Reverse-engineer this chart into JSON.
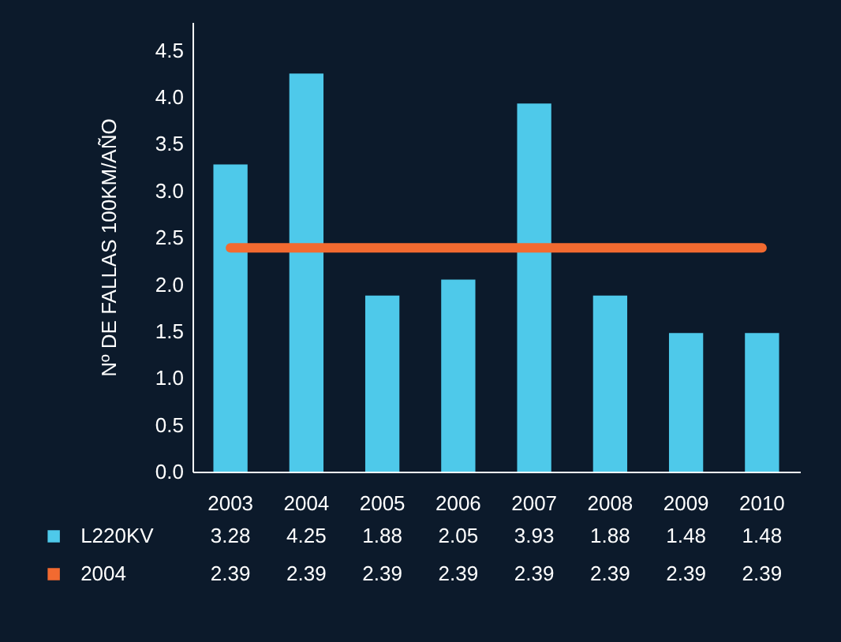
{
  "chart_data": {
    "type": "bar",
    "ylabel": "Nº DE FALLAS 100KM/AÑO",
    "categories": [
      "2003",
      "2004",
      "2005",
      "2006",
      "2007",
      "2008",
      "2009",
      "2010"
    ],
    "series": [
      {
        "name": "L220KV",
        "color": "#4ec9ea",
        "values": [
          3.28,
          4.25,
          1.88,
          2.05,
          3.93,
          1.88,
          1.48,
          1.48
        ]
      },
      {
        "name": "2004",
        "type": "line",
        "color": "#f26a30",
        "values": [
          2.39,
          2.39,
          2.39,
          2.39,
          2.39,
          2.39,
          2.39,
          2.39
        ]
      }
    ],
    "ylim": [
      0,
      4.8
    ],
    "yticks": [
      {
        "value": 0,
        "label": "0.0"
      },
      {
        "value": 0.5,
        "label": "0.5"
      },
      {
        "value": 1,
        "label": "1.0"
      },
      {
        "value": 1.5,
        "label": "1.5"
      },
      {
        "value": 2,
        "label": "2.0"
      },
      {
        "value": 2.5,
        "label": "2.5"
      },
      {
        "value": 3,
        "label": "3.0"
      },
      {
        "value": 3.5,
        "label": "3.5"
      },
      {
        "value": 4,
        "label": "4.0"
      },
      {
        "value": 4.5,
        "label": "4.5"
      }
    ],
    "grid": false,
    "legend": "bottom",
    "data_labels": true
  }
}
